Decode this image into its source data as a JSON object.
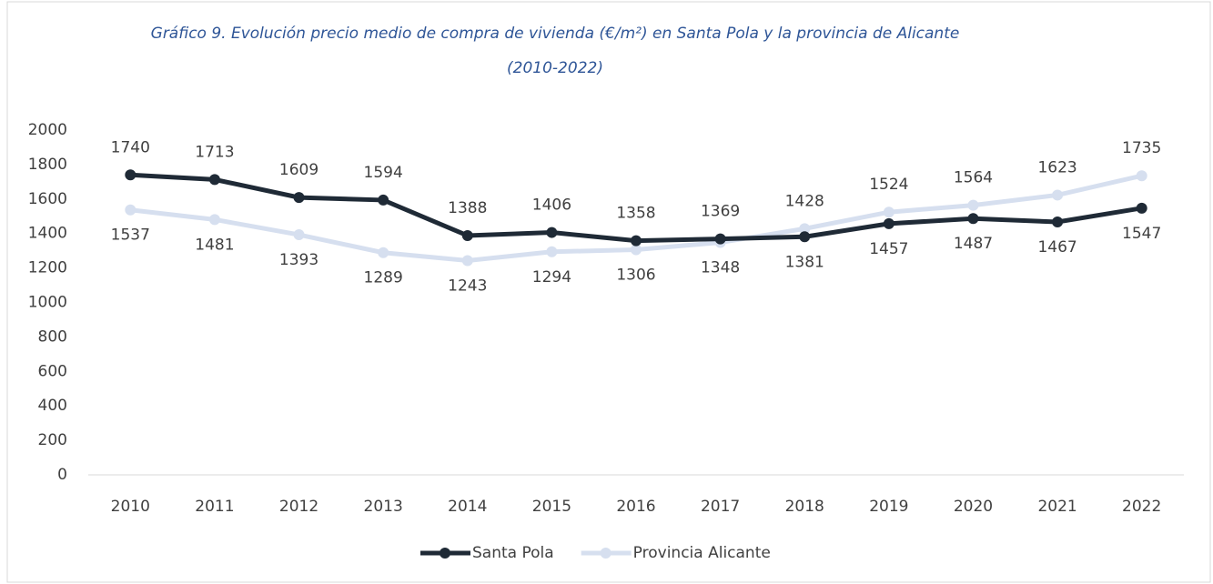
{
  "chart_data": {
    "type": "line",
    "title": "Gráfico 9. Evolución precio medio de compra de vivienda (€/m²) en Santa Pola y la provincia de Alicante (2010-2022)",
    "categories": [
      "2010",
      "2011",
      "2012",
      "2013",
      "2014",
      "2015",
      "2016",
      "2017",
      "2018",
      "2019",
      "2020",
      "2021",
      "2022"
    ],
    "series": [
      {
        "name": "Santa Pola",
        "color": "#1f2a36",
        "values": [
          1740,
          1713,
          1609,
          1594,
          1388,
          1406,
          1358,
          1369,
          1381,
          1457,
          1487,
          1467,
          1547
        ]
      },
      {
        "name": "Provincia Alicante",
        "color": "#d6dfef",
        "values": [
          1537,
          1481,
          1393,
          1289,
          1243,
          1294,
          1306,
          1348,
          1428,
          1524,
          1564,
          1623,
          1735
        ]
      }
    ],
    "ylim": [
      0,
      2000
    ],
    "yticks": [
      0,
      200,
      400,
      600,
      800,
      1000,
      1200,
      1400,
      1600,
      1800,
      2000
    ],
    "legend": "bottom"
  }
}
